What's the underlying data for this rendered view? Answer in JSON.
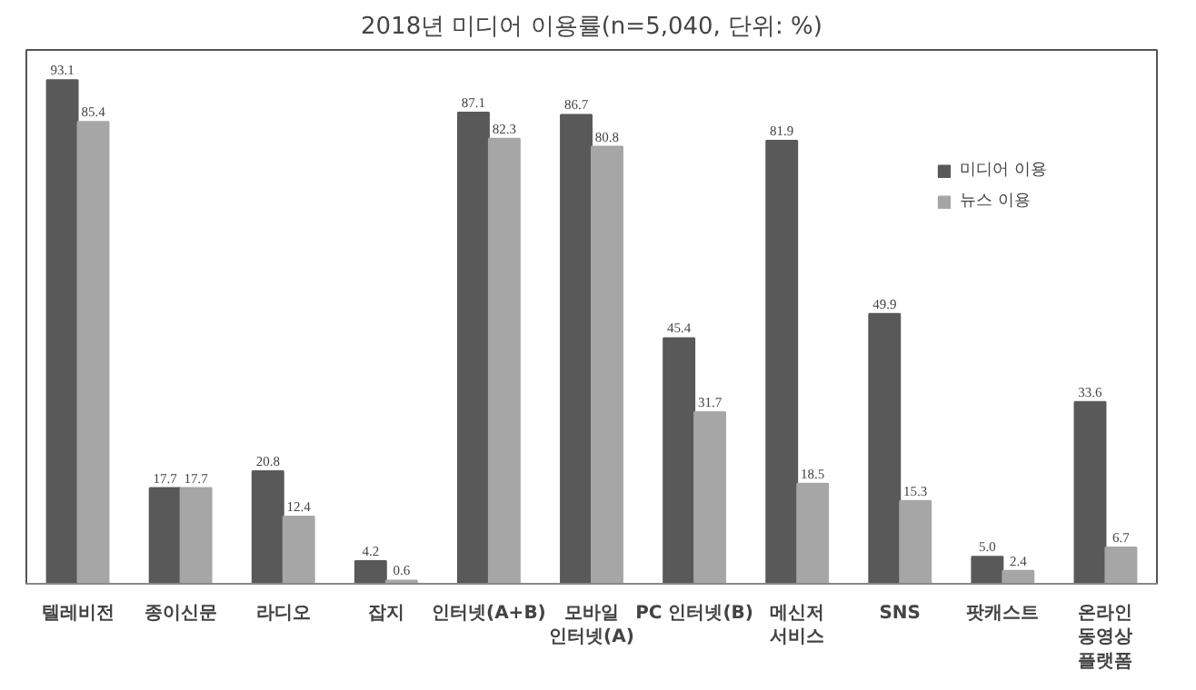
{
  "chart_data": {
    "type": "bar",
    "title": "2018년 미디어 이용률(n=5,040, 단위: %)",
    "categories": [
      "텔레비전",
      "종이신문",
      "라디오",
      "잡지",
      "인터넷(A+B)",
      "모바일\n인터넷(A)",
      "PC 인터넷(B)",
      "메신저\n서비스",
      "SNS",
      "팟캐스트",
      "온라인\n동영상\n플랫폼"
    ],
    "series": [
      {
        "name": "미디어 이용",
        "color": "#595959",
        "values": [
          93.1,
          17.7,
          20.8,
          4.2,
          87.1,
          86.7,
          45.4,
          81.9,
          49.9,
          5.0,
          33.6
        ],
        "value_labels": [
          "93.1",
          "17.7",
          "20.8",
          "4.2",
          "87.1",
          "86.7",
          "45.4",
          "81.9",
          "49.9",
          "5.0",
          "33.6"
        ]
      },
      {
        "name": "뉴스 이용",
        "color": "#a6a6a6",
        "values": [
          85.4,
          17.7,
          12.4,
          0.6,
          82.3,
          80.8,
          31.7,
          18.5,
          15.3,
          2.4,
          6.7
        ],
        "value_labels": [
          "85.4",
          "17.7",
          "12.4",
          "0.6",
          "82.3",
          "80.8",
          "31.7",
          "18.5",
          "15.3",
          "2.4",
          "6.7"
        ]
      }
    ],
    "legend": "top right",
    "grid": false
  }
}
